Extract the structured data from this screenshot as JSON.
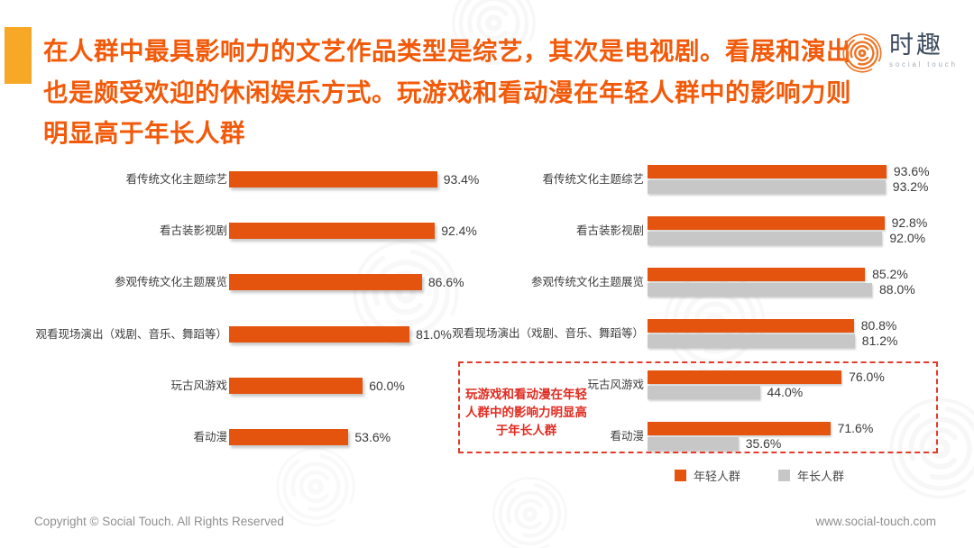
{
  "header": {
    "accent_color": "#F7A827",
    "title_color": "#F25A0A",
    "title_lines": [
      "在人群中最具影响力的文艺作品类型是综艺，其次是电视剧。看展和演出",
      "也是颇受欢迎的休闲娱乐方式。玩游戏和看动漫在年轻人群中的影响力则",
      "明显高于年长人群"
    ]
  },
  "logo": {
    "name": "时趣",
    "subtitle": "social touch",
    "icon_color": "#ED7425",
    "text_color": "#3D4B5E"
  },
  "chart_data": [
    {
      "type": "bar",
      "orientation": "horizontal",
      "categories": [
        "看传统文化主题综艺",
        "看古装影视剧",
        "参观传统文化主题展览",
        "观看现场演出（戏剧、音乐、舞蹈等）",
        "玩古风游戏",
        "看动漫"
      ],
      "values": [
        93.4,
        92.4,
        86.6,
        81.0,
        60.0,
        53.6
      ],
      "value_labels": [
        "93.4%",
        "92.4%",
        "86.6%",
        "81.0%",
        "60.0%",
        "53.6%"
      ],
      "bar_color": "#E4540E",
      "xlim": [
        0,
        100
      ],
      "grid": false,
      "legend_position": "none"
    },
    {
      "type": "bar",
      "orientation": "horizontal",
      "categories": [
        "看传统文化主题综艺",
        "看古装影视剧",
        "参观传统文化主题展览",
        "观看现场演出（戏剧、音乐、舞蹈等）",
        "玩古风游戏",
        "看动漫"
      ],
      "series": [
        {
          "name": "年轻人群",
          "color": "#E4540E",
          "values": [
            93.6,
            92.8,
            85.2,
            80.8,
            76.0,
            71.6
          ],
          "value_labels": [
            "93.6%",
            "92.8%",
            "85.2%",
            "80.8%",
            "76.0%",
            "71.6%"
          ]
        },
        {
          "name": "年长人群",
          "color": "#C7C7C7",
          "values": [
            93.2,
            92.0,
            88.0,
            81.2,
            44.0,
            35.6
          ],
          "value_labels": [
            "93.2%",
            "92.0%",
            "88.0%",
            "81.2%",
            "44.0%",
            "35.6%"
          ]
        }
      ],
      "xlim": [
        0,
        100
      ],
      "grid": false,
      "legend_position": "bottom"
    }
  ],
  "annotation": {
    "lines": [
      "玩游戏和看动漫在年轻",
      "人群中的影响力明显高",
      "于年长人群"
    ],
    "border_color": "#E23B2E",
    "text_color": "#E02B20"
  },
  "legend": {
    "items": [
      {
        "label": "年轻人群",
        "color": "#E4540E"
      },
      {
        "label": "年长人群",
        "color": "#C7C7C7"
      }
    ]
  },
  "footer": {
    "left": "Copyright © Social Touch. All Rights Reserved",
    "right": "www.social-touch.com"
  }
}
